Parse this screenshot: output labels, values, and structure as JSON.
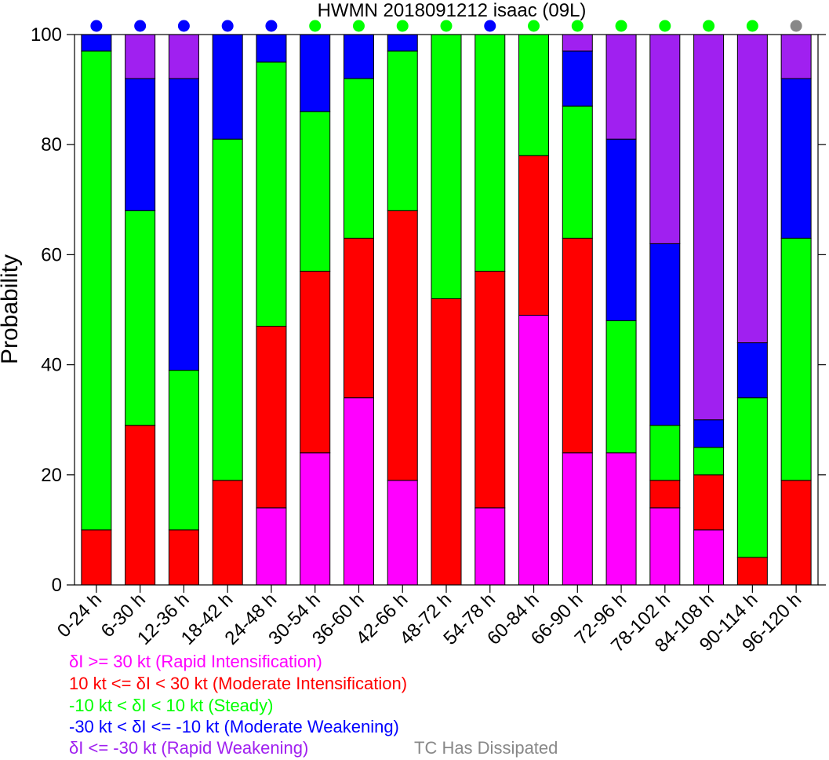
{
  "chart_data": {
    "type": "bar",
    "stacked": true,
    "title": "HWMN 2018091212 isaac (09L)",
    "xlabel": "",
    "ylabel": "Probability",
    "ylim": [
      0,
      100
    ],
    "yticks": [
      0,
      20,
      40,
      60,
      80,
      100
    ],
    "categories": [
      "0-24 h",
      "6-30 h",
      "12-36 h",
      "18-42 h",
      "24-48 h",
      "30-54 h",
      "36-60 h",
      "42-66 h",
      "48-72 h",
      "54-78 h",
      "60-84 h",
      "66-90 h",
      "72-96 h",
      "78-102 h",
      "84-108 h",
      "90-114 h",
      "96-120 h"
    ],
    "series": [
      {
        "name": "Rapid Intensification",
        "color": "#ff00ff",
        "values": [
          0,
          0,
          0,
          0,
          14,
          24,
          34,
          19,
          0,
          14,
          49,
          24,
          24,
          14,
          10,
          0,
          0
        ]
      },
      {
        "name": "Moderate Intensification",
        "color": "#ff0000",
        "values": [
          10,
          29,
          10,
          19,
          33,
          33,
          29,
          49,
          52,
          43,
          29,
          39,
          0,
          5,
          10,
          5,
          19
        ]
      },
      {
        "name": "Steady",
        "color": "#00ff00",
        "values": [
          87,
          39,
          29,
          62,
          48,
          29,
          29,
          29,
          48,
          43,
          22,
          24,
          24,
          10,
          5,
          29,
          44
        ]
      },
      {
        "name": "Moderate Weakening",
        "color": "#0000ff",
        "values": [
          3,
          24,
          53,
          19,
          5,
          14,
          8,
          3,
          0,
          0,
          0,
          10,
          33,
          33,
          5,
          10,
          29
        ]
      },
      {
        "name": "Rapid Weakening",
        "color": "#a020f0",
        "values": [
          0,
          8,
          8,
          0,
          0,
          0,
          0,
          0,
          0,
          0,
          0,
          3,
          19,
          38,
          70,
          56,
          8
        ]
      }
    ],
    "dot_colors": [
      "#0000ff",
      "#0000ff",
      "#0000ff",
      "#0000ff",
      "#0000ff",
      "#00ff00",
      "#00ff00",
      "#00ff00",
      "#00ff00",
      "#0000ff",
      "#00ff00",
      "#00ff00",
      "#00ff00",
      "#00ff00",
      "#00ff00",
      "#00ff00",
      "#888888"
    ],
    "legend": [
      {
        "label": "δI >= 30 kt (Rapid Intensification)",
        "color": "#ff00ff"
      },
      {
        "label": "10 kt <= δI < 30 kt (Moderate Intensification)",
        "color": "#ff0000"
      },
      {
        "label": "-10 kt < δI < 10 kt (Steady)",
        "color": "#00ff00"
      },
      {
        "label": "-30 kt < δI <= -10 kt (Moderate Weakening)",
        "color": "#0000ff"
      },
      {
        "label": "δI <= -30 kt (Rapid Weakening)",
        "color": "#a020f0"
      }
    ],
    "dissipated_label": "TC Has Dissipated",
    "dissipated_color": "#888888"
  }
}
